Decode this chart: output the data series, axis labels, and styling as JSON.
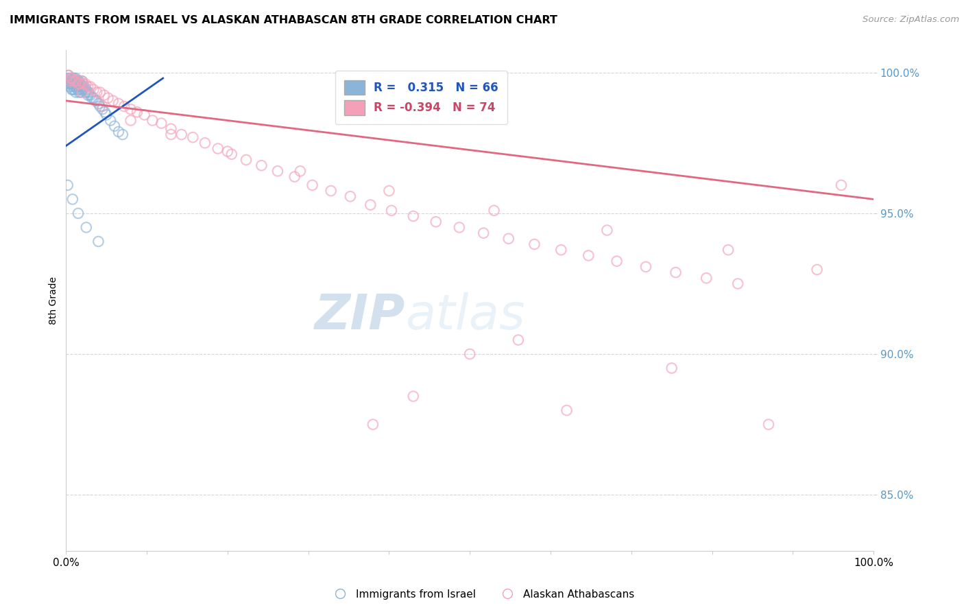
{
  "title": "IMMIGRANTS FROM ISRAEL VS ALASKAN ATHABASCAN 8TH GRADE CORRELATION CHART",
  "source": "Source: ZipAtlas.com",
  "ylabel": "8th Grade",
  "xlabel": "",
  "xlim": [
    0.0,
    1.0
  ],
  "ylim": [
    0.83,
    1.008
  ],
  "yticks": [
    0.85,
    0.9,
    0.95,
    1.0
  ],
  "ytick_labels": [
    "85.0%",
    "90.0%",
    "95.0%",
    "100.0%"
  ],
  "xticks": [
    0.0,
    0.1,
    0.2,
    0.3,
    0.4,
    0.5,
    0.6,
    0.7,
    0.8,
    0.9,
    1.0
  ],
  "xtick_labels": [
    "0.0%",
    "",
    "",
    "",
    "",
    "",
    "",
    "",
    "",
    "",
    "100.0%"
  ],
  "blue_R": 0.315,
  "blue_N": 66,
  "pink_R": -0.394,
  "pink_N": 74,
  "blue_color": "#8ab4d8",
  "pink_color": "#f4a0b8",
  "blue_line_color": "#2255bb",
  "pink_line_color": "#e06880",
  "legend_label_blue": "Immigrants from Israel",
  "legend_label_pink": "Alaskan Athabascans",
  "watermark_zip": "ZIP",
  "watermark_atlas": "atlas",
  "blue_line_x": [
    0.0,
    0.12
  ],
  "blue_line_y": [
    0.974,
    0.998
  ],
  "pink_line_x": [
    0.0,
    1.0
  ],
  "pink_line_y": [
    0.99,
    0.955
  ],
  "blue_x": [
    0.002,
    0.003,
    0.003,
    0.004,
    0.004,
    0.005,
    0.005,
    0.006,
    0.006,
    0.007,
    0.007,
    0.008,
    0.008,
    0.008,
    0.009,
    0.009,
    0.01,
    0.01,
    0.01,
    0.011,
    0.011,
    0.012,
    0.012,
    0.012,
    0.013,
    0.013,
    0.014,
    0.014,
    0.015,
    0.015,
    0.016,
    0.016,
    0.017,
    0.017,
    0.018,
    0.018,
    0.019,
    0.02,
    0.02,
    0.021,
    0.022,
    0.023,
    0.024,
    0.025,
    0.026,
    0.027,
    0.028,
    0.03,
    0.032,
    0.034,
    0.036,
    0.038,
    0.04,
    0.042,
    0.045,
    0.048,
    0.05,
    0.055,
    0.06,
    0.065,
    0.07,
    0.002,
    0.008,
    0.015,
    0.025,
    0.04
  ],
  "blue_y": [
    0.998,
    0.999,
    0.997,
    0.998,
    0.996,
    0.997,
    0.995,
    0.998,
    0.996,
    0.997,
    0.994,
    0.998,
    0.996,
    0.994,
    0.997,
    0.995,
    0.998,
    0.996,
    0.994,
    0.997,
    0.995,
    0.998,
    0.996,
    0.993,
    0.997,
    0.995,
    0.996,
    0.994,
    0.997,
    0.995,
    0.997,
    0.993,
    0.996,
    0.994,
    0.996,
    0.993,
    0.995,
    0.997,
    0.994,
    0.995,
    0.994,
    0.995,
    0.993,
    0.994,
    0.993,
    0.992,
    0.993,
    0.992,
    0.991,
    0.991,
    0.99,
    0.99,
    0.989,
    0.988,
    0.987,
    0.986,
    0.985,
    0.983,
    0.981,
    0.979,
    0.978,
    0.96,
    0.955,
    0.95,
    0.945,
    0.94
  ],
  "pink_x": [
    0.003,
    0.005,
    0.007,
    0.009,
    0.011,
    0.013,
    0.015,
    0.017,
    0.019,
    0.021,
    0.024,
    0.027,
    0.03,
    0.034,
    0.038,
    0.042,
    0.047,
    0.052,
    0.058,
    0.065,
    0.072,
    0.08,
    0.088,
    0.097,
    0.107,
    0.118,
    0.13,
    0.143,
    0.157,
    0.172,
    0.188,
    0.205,
    0.223,
    0.242,
    0.262,
    0.283,
    0.305,
    0.328,
    0.352,
    0.377,
    0.403,
    0.43,
    0.458,
    0.487,
    0.517,
    0.548,
    0.58,
    0.613,
    0.647,
    0.682,
    0.718,
    0.755,
    0.793,
    0.832,
    0.005,
    0.02,
    0.045,
    0.08,
    0.13,
    0.2,
    0.29,
    0.4,
    0.53,
    0.67,
    0.82,
    0.93,
    0.96,
    0.5,
    0.38,
    0.62,
    0.75,
    0.87,
    0.43,
    0.56
  ],
  "pink_y": [
    0.999,
    0.998,
    0.998,
    0.997,
    0.997,
    0.997,
    0.996,
    0.996,
    0.997,
    0.996,
    0.996,
    0.995,
    0.995,
    0.994,
    0.993,
    0.993,
    0.992,
    0.991,
    0.99,
    0.989,
    0.988,
    0.987,
    0.986,
    0.985,
    0.983,
    0.982,
    0.98,
    0.978,
    0.977,
    0.975,
    0.973,
    0.971,
    0.969,
    0.967,
    0.965,
    0.963,
    0.96,
    0.958,
    0.956,
    0.953,
    0.951,
    0.949,
    0.947,
    0.945,
    0.943,
    0.941,
    0.939,
    0.937,
    0.935,
    0.933,
    0.931,
    0.929,
    0.927,
    0.925,
    0.997,
    0.993,
    0.988,
    0.983,
    0.978,
    0.972,
    0.965,
    0.958,
    0.951,
    0.944,
    0.937,
    0.93,
    0.96,
    0.9,
    0.875,
    0.88,
    0.895,
    0.875,
    0.885,
    0.905
  ]
}
